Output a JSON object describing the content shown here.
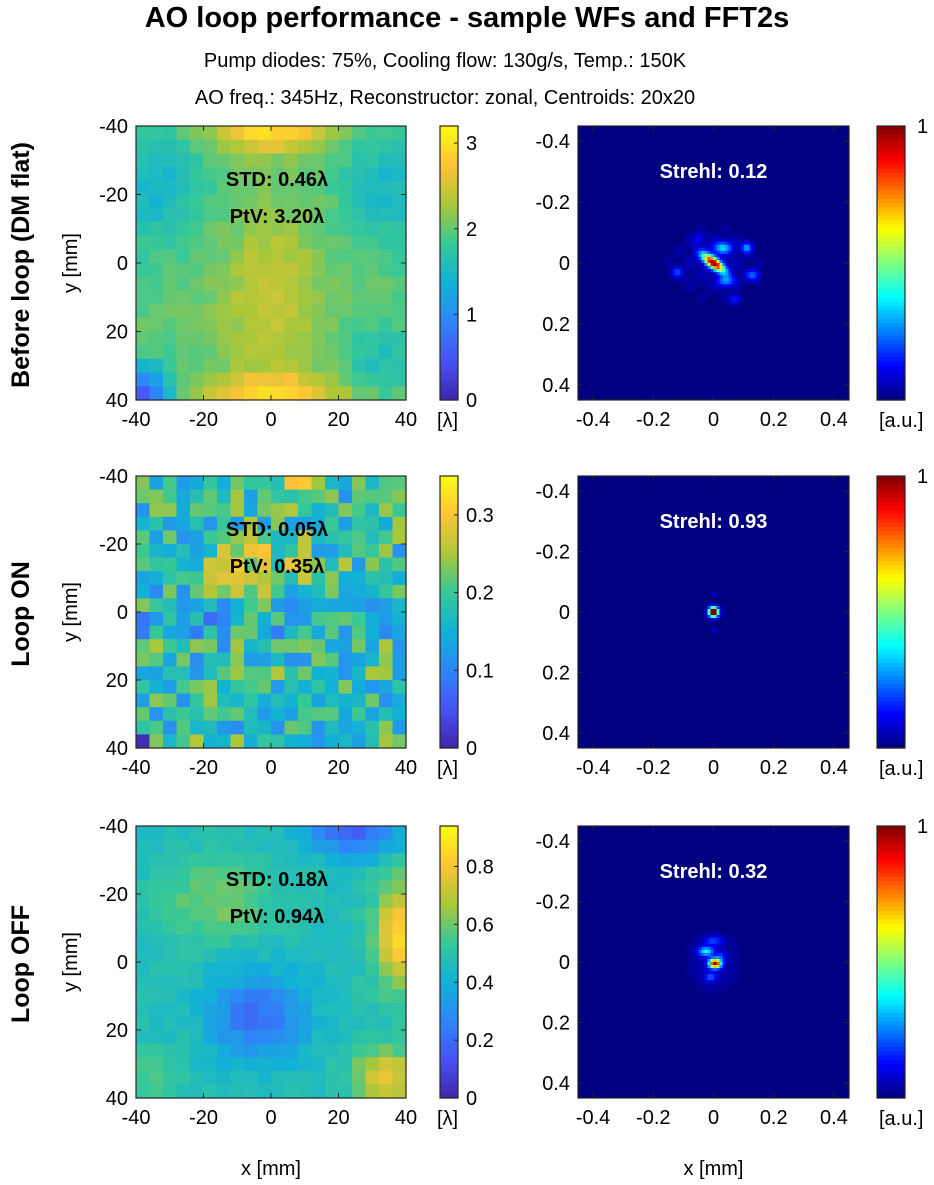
{
  "figure": {
    "title": "AO loop performance - sample WFs and FFT2s",
    "subtitle1": "Pump diodes: 75%, Cooling flow: 130g/s, Temp.: 150K",
    "subtitle2": "AO freq.: 345Hz, Reconstructor: zonal, Centroids: 20x20",
    "row_labels": [
      "Before loop (DM flat)",
      "Loop ON",
      "Loop OFF"
    ],
    "wf_ylabel": "y [mm]",
    "wf_xlabel": "x [mm]",
    "psf_xlabel": "x [mm]",
    "wf_unit": "[λ]",
    "psf_unit": "[a.u.]"
  },
  "chart_data": [
    {
      "type": "heatmap",
      "name": "wavefront-before-loop",
      "xlabel": "",
      "ylabel": "y [mm]",
      "xlim": [
        -40,
        40
      ],
      "ylim": [
        -40,
        40
      ],
      "xticks": [
        "-40",
        "-20",
        "0",
        "20",
        "40"
      ],
      "yticks": [
        "-40",
        "-20",
        "0",
        "20",
        "40"
      ],
      "annotations": [
        "STD: 0.46λ",
        "PtV: 3.20λ"
      ],
      "colorbar": {
        "min": 0,
        "max": 3.2,
        "ticks": [
          "0",
          "1",
          "2",
          "3"
        ],
        "unit": "[λ]",
        "colormap": "parula"
      },
      "grid_size": 20,
      "pattern": "before"
    },
    {
      "type": "heatmap",
      "name": "psf-before-loop",
      "xlabel": "",
      "ylabel": "",
      "xlim": [
        -0.45,
        0.45
      ],
      "ylim": [
        -0.45,
        0.45
      ],
      "xticks": [
        "-0.4",
        "-0.2",
        "0",
        "0.2",
        "0.4"
      ],
      "yticks": [
        "-0.4",
        "-0.2",
        "0",
        "0.2",
        "0.4"
      ],
      "annotations": [
        "Strehl: 0.12"
      ],
      "colorbar": {
        "min": 0,
        "max": 1,
        "ticks": [
          "1"
        ],
        "unit": "[a.u.]",
        "colormap": "jet"
      },
      "pattern": "psf-before"
    },
    {
      "type": "heatmap",
      "name": "wavefront-loop-on",
      "xlabel": "",
      "ylabel": "y [mm]",
      "xlim": [
        -40,
        40
      ],
      "ylim": [
        -40,
        40
      ],
      "xticks": [
        "-40",
        "-20",
        "0",
        "20",
        "40"
      ],
      "yticks": [
        "-40",
        "-20",
        "0",
        "20",
        "40"
      ],
      "annotations": [
        "STD: 0.05λ",
        "PtV: 0.35λ"
      ],
      "colorbar": {
        "min": 0,
        "max": 0.35,
        "ticks": [
          "0",
          "0.1",
          "0.2",
          "0.3"
        ],
        "unit": "[λ]",
        "colormap": "parula"
      },
      "grid_size": 20,
      "pattern": "on"
    },
    {
      "type": "heatmap",
      "name": "psf-loop-on",
      "xlabel": "",
      "ylabel": "",
      "xlim": [
        -0.45,
        0.45
      ],
      "ylim": [
        -0.45,
        0.45
      ],
      "xticks": [
        "-0.4",
        "-0.2",
        "0",
        "0.2",
        "0.4"
      ],
      "yticks": [
        "-0.4",
        "-0.2",
        "0",
        "0.2",
        "0.4"
      ],
      "annotations": [
        "Strehl: 0.93"
      ],
      "colorbar": {
        "min": 0,
        "max": 1,
        "ticks": [
          "1"
        ],
        "unit": "[a.u.]",
        "colormap": "jet"
      },
      "pattern": "psf-on"
    },
    {
      "type": "heatmap",
      "name": "wavefront-loop-off",
      "xlabel": "x [mm]",
      "ylabel": "y [mm]",
      "xlim": [
        -40,
        40
      ],
      "ylim": [
        -40,
        40
      ],
      "xticks": [
        "-40",
        "-20",
        "0",
        "20",
        "40"
      ],
      "yticks": [
        "-40",
        "-20",
        "0",
        "20",
        "40"
      ],
      "annotations": [
        "STD: 0.18λ",
        "PtV: 0.94λ"
      ],
      "colorbar": {
        "min": 0,
        "max": 0.94,
        "ticks": [
          "0",
          "0.2",
          "0.4",
          "0.6",
          "0.8"
        ],
        "unit": "[λ]",
        "colormap": "parula"
      },
      "grid_size": 20,
      "pattern": "off"
    },
    {
      "type": "heatmap",
      "name": "psf-loop-off",
      "xlabel": "x [mm]",
      "ylabel": "",
      "xlim": [
        -0.45,
        0.45
      ],
      "ylim": [
        -0.45,
        0.45
      ],
      "xticks": [
        "-0.4",
        "-0.2",
        "0",
        "0.2",
        "0.4"
      ],
      "yticks": [
        "-0.4",
        "-0.2",
        "0",
        "0.2",
        "0.4"
      ],
      "annotations": [
        "Strehl: 0.32"
      ],
      "colorbar": {
        "min": 0,
        "max": 1,
        "ticks": [
          "1"
        ],
        "unit": "[a.u.]",
        "colormap": "jet"
      },
      "pattern": "psf-off"
    }
  ]
}
